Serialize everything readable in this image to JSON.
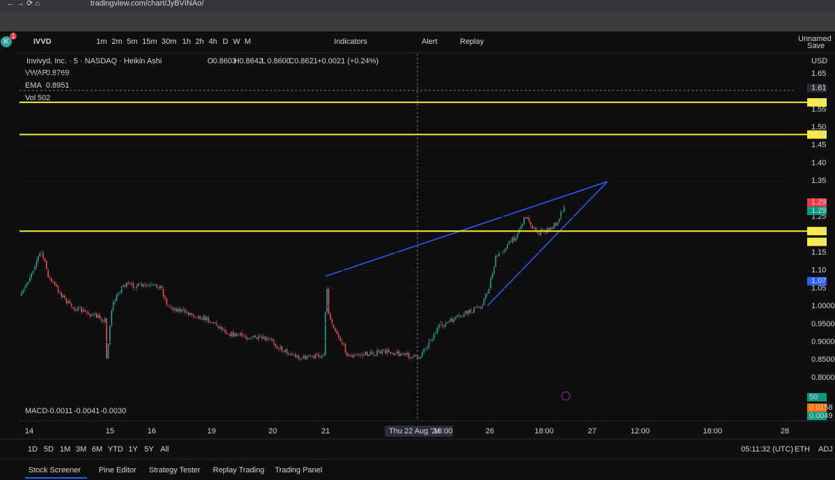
{
  "browser": {
    "url": "tradingview.com/chart/JyBVINAo/"
  },
  "toolbar": {
    "avatar": "K",
    "badge": "1",
    "symbol": "IVVD",
    "intervals": [
      "1m",
      "2m",
      "5m",
      "15m",
      "30m",
      "1h",
      "2h",
      "4h",
      "D",
      "W",
      "M"
    ],
    "indicators": "Indicators",
    "alert": "Alert",
    "replay": "Replay",
    "layout_name": "Unnamed",
    "save": "Save"
  },
  "legend": {
    "title": "Invivyd, Inc. · 5 · NASDAQ · Heikin Ashi",
    "ohlc": [
      {
        "key": "O",
        "value": "0.8603"
      },
      {
        "key": "H",
        "value": "0.8642"
      },
      {
        "key": "L",
        "value": "0.8600"
      },
      {
        "key": "C",
        "value": "0.8621"
      }
    ],
    "change": "+0.0021 (+0.24%)",
    "indicators": [
      {
        "name": "VWAP",
        "value": "0.8769"
      },
      {
        "name": "EMA",
        "value": "0.8951"
      },
      {
        "name": "Vol",
        "value": "502"
      }
    ],
    "macd": {
      "name": "MACD",
      "values": [
        "-0.0011",
        "-0.0041",
        "-0.0030"
      ],
      "colors": [
        "#d1d4dc",
        "#2962ff",
        "#ff6d00"
      ]
    }
  },
  "price_axis": {
    "currency": "USD",
    "ticks": [
      1.65,
      {
        "value": 1.55,
        "label": "1.55"
      },
      {
        "value": 1.5,
        "label": "1.50"
      },
      1.45,
      {
        "value": 1.4,
        "label": "1.40"
      },
      1.35,
      1.25,
      1.15,
      {
        "value": 1.1,
        "label": "1.10"
      },
      1.05,
      {
        "value": 1,
        "label": "1.0000"
      },
      {
        "value": 0.95,
        "label": "0.9500"
      },
      {
        "value": 0.9,
        "label": "0.9000"
      },
      {
        "value": 0.85,
        "label": "0.8500"
      },
      {
        "value": 0.8,
        "label": "0.8000"
      }
    ],
    "markers": [
      {
        "value": 1.61,
        "label": "1.61",
        "color": "#2a2e39",
        "text_color": "#ffffff",
        "line": false
      },
      {
        "value": 1.57,
        "label": "1.57",
        "color": "#ffeb3b",
        "text_color": "#000000",
        "line": true
      },
      {
        "value": 1.48,
        "label": "1.48",
        "color": "#ffeb3b",
        "text_color": "#000000",
        "line": true
      },
      {
        "value": 1.29,
        "label": "1.29",
        "color": "#f23645",
        "text_color": "#ffffff",
        "line": false
      },
      {
        "value": 1.29,
        "label": "1.29",
        "color": "#089981",
        "text_color": "#ffffff",
        "line": false
      },
      {
        "value": 1.21,
        "label": "1.21",
        "color": "#ffeb3b",
        "text_color": "#000000",
        "line": true
      },
      {
        "value": 1.18,
        "label": "1.18",
        "color": "#ffeb3b",
        "text_color": "#000000",
        "line": false
      },
      {
        "value": 1.07,
        "label": "1.07",
        "color": "#2962ff",
        "text_color": "#ffffff",
        "line": false
      }
    ]
  },
  "macd_axis": {
    "markers": [
      {
        "label": "50",
        "color": "#089981"
      },
      {
        "label": "0.0158",
        "color": "#ff6d00"
      },
      {
        "label": "0.0049",
        "color": "#089981"
      }
    ]
  },
  "time_axis": {
    "labels": [
      "14",
      "15",
      "16",
      "19",
      "20",
      "21",
      "26",
      "18:00",
      "27",
      "12:00",
      "18:00",
      "28"
    ],
    "crosshair": {
      "date": "Thu 22 Aug '24",
      "time": "18:00"
    }
  },
  "range_bar": {
    "ranges": [
      "1D",
      "5D",
      "1M",
      "3M",
      "6M",
      "YTD",
      "1Y",
      "5Y",
      "All"
    ],
    "clock": "05:11:32 (UTC)",
    "session": "ETH",
    "adjust": "ADJ"
  },
  "bottom_tabs": [
    "Stock Screener",
    "Pine Editor",
    "Strategy Tester",
    "Replay Trading",
    "Trading Panel"
  ]
}
